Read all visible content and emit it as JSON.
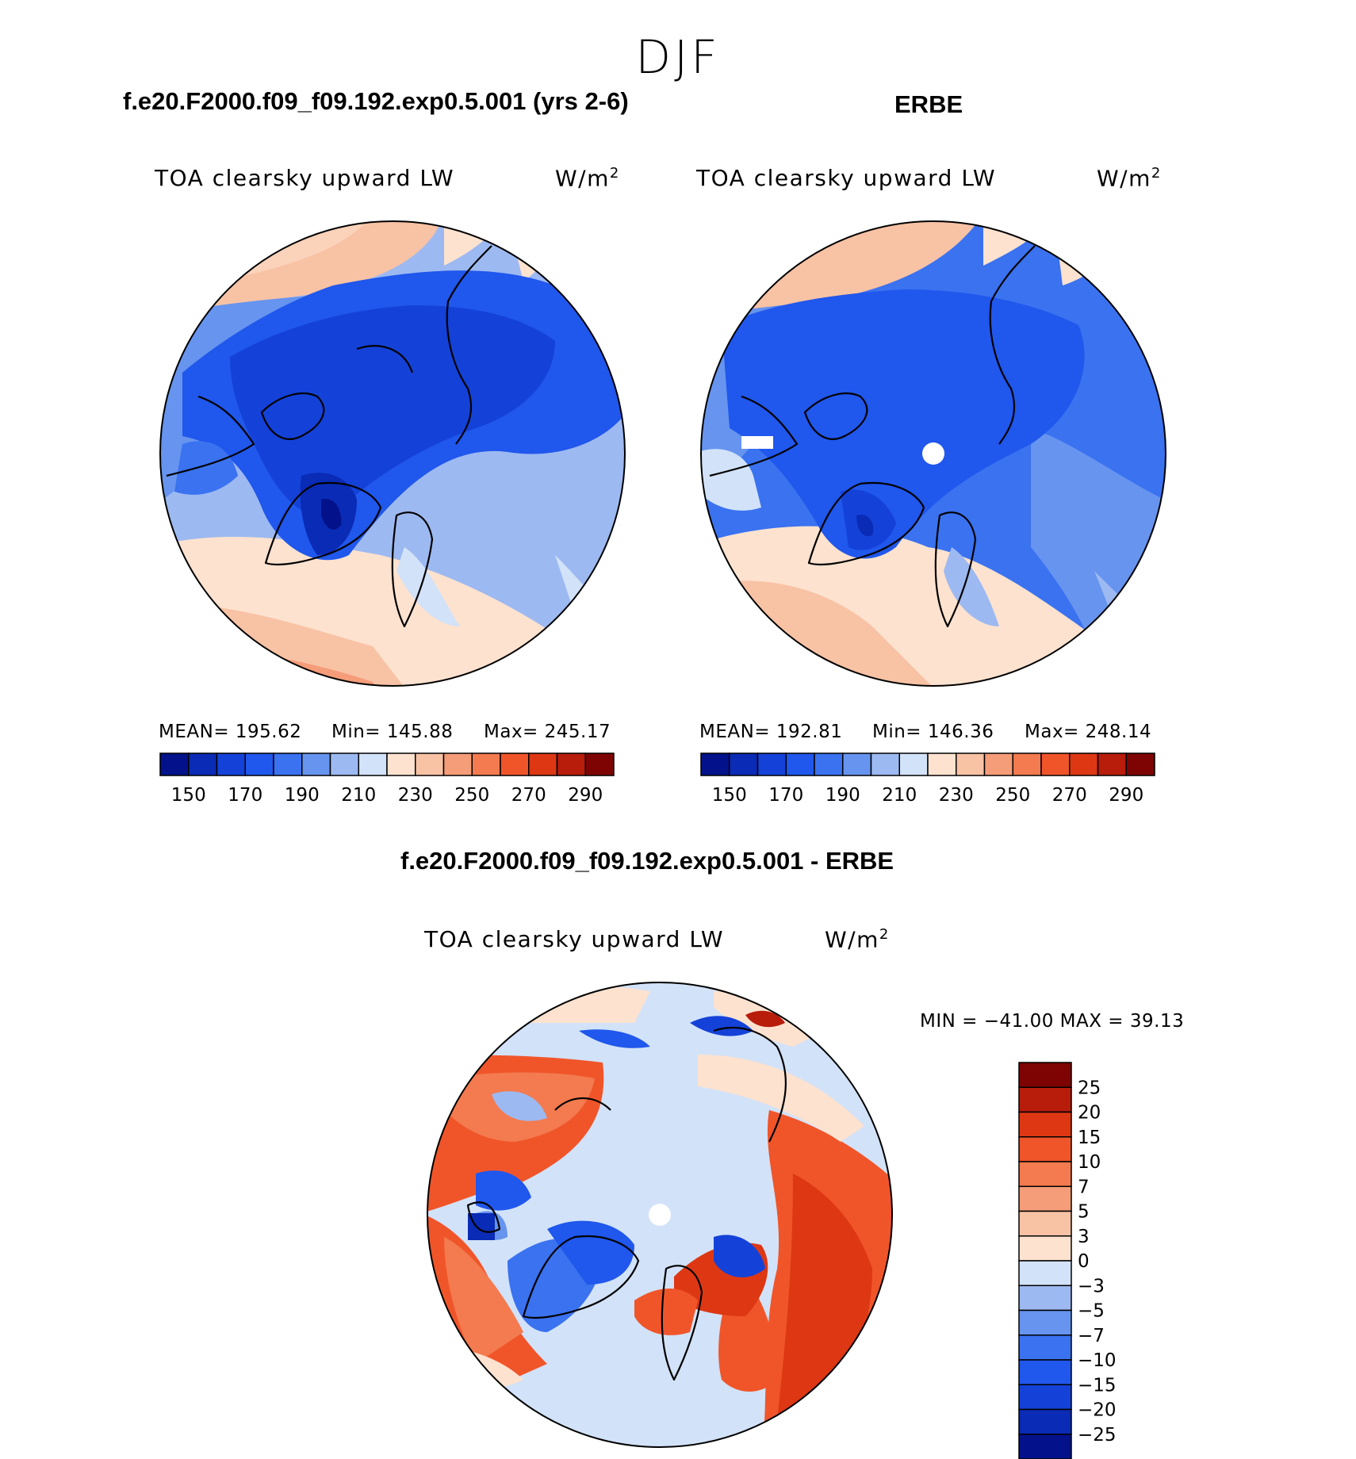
{
  "figure": {
    "season": "DJF",
    "panel_left_title": "f.e20.F2000.f09_f09.192.exp0.5.001 (yrs 2-6)",
    "panel_right_title": "ERBE",
    "diff_title": "f.e20.F2000.f09_f09.192.exp0.5.001 - ERBE"
  },
  "chart_data": [
    {
      "type": "heatmap",
      "projection": "north polar stereographic",
      "title": "f.e20.F2000.f09_f09.192.exp0.5.001 (yrs 2-6)",
      "variable": "TOA clearsky upward LW",
      "units": "W/m",
      "units_exp": "2",
      "stats": {
        "mean_label": "MEAN= 195.62",
        "min_label": "Min= 145.88",
        "max_label": "Max= 245.17",
        "mean": 195.62,
        "min": 145.88,
        "max": 245.17
      },
      "colorbar": {
        "orientation": "horizontal",
        "levels": [
          140,
          150,
          160,
          170,
          180,
          190,
          200,
          210,
          220,
          230,
          240,
          250,
          260,
          270,
          280,
          290
        ],
        "tick_labels": [
          "150",
          "170",
          "190",
          "210",
          "230",
          "250",
          "270",
          "290"
        ],
        "colors": [
          "#03128a",
          "#0a2bb5",
          "#1442d8",
          "#2057ec",
          "#3a72f0",
          "#6694ef",
          "#9db9f1",
          "#d2e2f8",
          "#fde2cf",
          "#f8c2a5",
          "#f59c78",
          "#f47a4f",
          "#f0552a",
          "#dd3813",
          "#b81c0b",
          "#7e0404"
        ]
      }
    },
    {
      "type": "heatmap",
      "projection": "north polar stereographic",
      "title": "ERBE",
      "variable": "TOA clearsky upward LW",
      "units": "W/m",
      "units_exp": "2",
      "stats": {
        "mean_label": "MEAN= 192.81",
        "min_label": "Min= 146.36",
        "max_label": "Max= 248.14",
        "mean": 192.81,
        "min": 146.36,
        "max": 248.14
      },
      "colorbar": {
        "orientation": "horizontal",
        "levels": [
          140,
          150,
          160,
          170,
          180,
          190,
          200,
          210,
          220,
          230,
          240,
          250,
          260,
          270,
          280,
          290
        ],
        "tick_labels": [
          "150",
          "170",
          "190",
          "210",
          "230",
          "250",
          "270",
          "290"
        ],
        "colors": [
          "#03128a",
          "#0a2bb5",
          "#1442d8",
          "#2057ec",
          "#3a72f0",
          "#6694ef",
          "#9db9f1",
          "#d2e2f8",
          "#fde2cf",
          "#f8c2a5",
          "#f59c78",
          "#f47a4f",
          "#f0552a",
          "#dd3813",
          "#b81c0b",
          "#7e0404"
        ]
      }
    },
    {
      "type": "heatmap",
      "projection": "north polar stereographic",
      "title": "f.e20.F2000.f09_f09.192.exp0.5.001 - ERBE",
      "variable": "TOA clearsky upward LW",
      "units": "W/m",
      "units_exp": "2",
      "stats": {
        "minmax_label": "MIN = −41.00 MAX =   39.13",
        "min": -41.0,
        "max": 39.13
      },
      "colorbar": {
        "orientation": "vertical",
        "levels": [
          -25,
          -20,
          -15,
          -10,
          -7,
          -5,
          -3,
          0,
          3,
          5,
          7,
          10,
          15,
          20,
          25
        ],
        "tick_labels": [
          "25",
          "20",
          "15",
          "10",
          "7",
          "5",
          "3",
          "0",
          "−3",
          "−5",
          "−7",
          "−10",
          "−15",
          "−20",
          "−25"
        ],
        "colors_top_to_bottom": [
          "#7e0404",
          "#b81c0b",
          "#dd3813",
          "#f0552a",
          "#f47a4f",
          "#f59c78",
          "#f8c2a5",
          "#fde2cf",
          "#d2e2f8",
          "#9db9f1",
          "#6694ef",
          "#3a72f0",
          "#2057ec",
          "#1442d8",
          "#0a2bb5",
          "#03128a"
        ]
      }
    }
  ]
}
